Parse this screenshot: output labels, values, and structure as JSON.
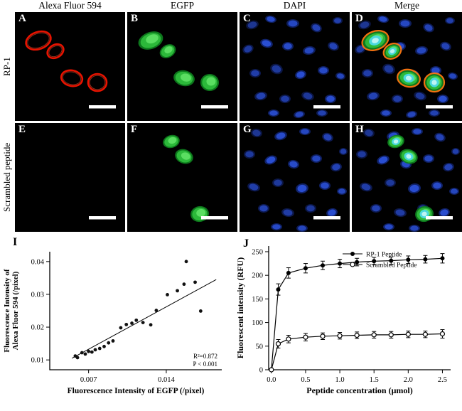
{
  "figure": {
    "column_headers": [
      "Alexa Fluor 594",
      "EGFP",
      "DAPI",
      "Merge"
    ],
    "row_labels": [
      "RP-1",
      "Scrambled peptide"
    ],
    "panel_letters": [
      "A",
      "B",
      "C",
      "D",
      "E",
      "F",
      "G",
      "H"
    ]
  },
  "chart_data": [
    {
      "panel_letter": "I",
      "type": "scatter",
      "title": "",
      "xlabel": "Fluorescence Intensity of EGFP (/pixel)",
      "ylabel_lines": [
        "Fluorescence Intensity of",
        "Alexa Fluor 594 (/pixel)"
      ],
      "xlim": [
        0.0035,
        0.019
      ],
      "ylim": [
        0.007,
        0.043
      ],
      "xticks": [
        0.007,
        0.014
      ],
      "xtick_labels": [
        "0.007",
        "0.014"
      ],
      "yticks": [
        0.01,
        0.02,
        0.03,
        0.04
      ],
      "ytick_labels": [
        "0.01",
        "0.02",
        "0.03",
        "0.04"
      ],
      "points": [
        [
          0.0058,
          0.0112
        ],
        [
          0.006,
          0.0107
        ],
        [
          0.0064,
          0.0122
        ],
        [
          0.0067,
          0.0118
        ],
        [
          0.007,
          0.0126
        ],
        [
          0.0073,
          0.0124
        ],
        [
          0.0076,
          0.0131
        ],
        [
          0.008,
          0.0135
        ],
        [
          0.0084,
          0.0141
        ],
        [
          0.0088,
          0.0152
        ],
        [
          0.0092,
          0.0158
        ],
        [
          0.0099,
          0.0198
        ],
        [
          0.0104,
          0.0208
        ],
        [
          0.0109,
          0.0212
        ],
        [
          0.0113,
          0.0221
        ],
        [
          0.0119,
          0.0214
        ],
        [
          0.0126,
          0.0207
        ],
        [
          0.0131,
          0.0251
        ],
        [
          0.0141,
          0.0299
        ],
        [
          0.015,
          0.0311
        ],
        [
          0.0156,
          0.0331
        ],
        [
          0.0158,
          0.04
        ],
        [
          0.0166,
          0.0337
        ],
        [
          0.0171,
          0.0249
        ]
      ],
      "fit_line": [
        [
          0.0055,
          0.0105
        ],
        [
          0.0185,
          0.0345
        ]
      ],
      "annotations": [
        "R²=0.872",
        "P < 0.001"
      ]
    },
    {
      "panel_letter": "J",
      "type": "line",
      "title": "",
      "xlabel": "Peptide concentration (μmol)",
      "ylabel_lines": [
        "Fluorescent intensity (RFU)"
      ],
      "xlim": [
        -0.04,
        2.62
      ],
      "ylim": [
        0,
        262
      ],
      "xticks": [
        0,
        0.5,
        1.0,
        1.5,
        2.0,
        2.5
      ],
      "xtick_labels": [
        "0.0",
        "0.5",
        "1.0",
        "1.5",
        "2.0",
        "2.5"
      ],
      "yticks": [
        0,
        50,
        100,
        150,
        200,
        250
      ],
      "ytick_labels": [
        "0",
        "50",
        "100",
        "150",
        "200",
        "250"
      ],
      "series": [
        {
          "name": "RP-1 Peptide",
          "marker": "filled",
          "x": [
            0,
            0.1,
            0.25,
            0.5,
            0.75,
            1.0,
            1.25,
            1.5,
            1.75,
            2.0,
            2.25,
            2.5
          ],
          "y": [
            0,
            170,
            205,
            215,
            221,
            225,
            228,
            230,
            231,
            233,
            234,
            236
          ],
          "err": [
            0,
            12,
            11,
            10,
            9,
            9,
            8,
            8,
            8,
            8,
            8,
            10
          ]
        },
        {
          "name": "Scrambled Peptide",
          "marker": "open",
          "x": [
            0,
            0.1,
            0.25,
            0.5,
            0.75,
            1.0,
            1.25,
            1.5,
            1.75,
            2.0,
            2.25,
            2.5
          ],
          "y": [
            0,
            55,
            65,
            69,
            71,
            72,
            73,
            74,
            74,
            75,
            75,
            76
          ],
          "err": [
            0,
            9,
            8,
            8,
            7,
            7,
            7,
            7,
            7,
            7,
            7,
            9
          ]
        }
      ],
      "legend_position": "top-right-inside"
    }
  ]
}
